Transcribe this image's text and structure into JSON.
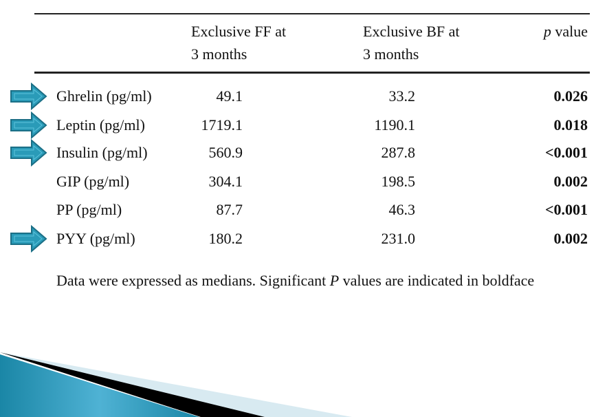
{
  "table": {
    "headers": {
      "ff": [
        "Exclusive FF at",
        "3 months"
      ],
      "bf": [
        "Exclusive BF at",
        "3 months"
      ],
      "p_italic": "p",
      "p_rest": " value"
    },
    "rows": [
      {
        "label": "Ghrelin (pg/ml)",
        "ff": "49.1",
        "bf": "33.2",
        "p": "0.026",
        "arrow": true
      },
      {
        "label": "Leptin (pg/ml)",
        "ff": "1719.1",
        "bf": "1190.1",
        "p": "0.018",
        "arrow": true
      },
      {
        "label": "Insulin (pg/ml)",
        "ff": "560.9",
        "bf": "287.8",
        "p": "<0.001",
        "arrow": true
      },
      {
        "label": "GIP (pg/ml)",
        "ff": "304.1",
        "bf": "198.5",
        "p": "0.002",
        "arrow": false
      },
      {
        "label": "PP (pg/ml)",
        "ff": "87.7",
        "bf": "46.3",
        "p": "<0.001",
        "arrow": false
      },
      {
        "label": "PYY (pg/ml)",
        "ff": "180.2",
        "bf": "231.0",
        "p": "0.002",
        "arrow": true
      }
    ]
  },
  "footnote": {
    "before": "Data were expressed as medians. Significant ",
    "italic": "P",
    "after": " values are indicated in boldface"
  },
  "colors": {
    "arrow_fill": "#2a9bb8",
    "arrow_stroke": "#1b6f86",
    "deco_blue": "#2a9bc0",
    "deco_light": "#d8eaf1"
  }
}
